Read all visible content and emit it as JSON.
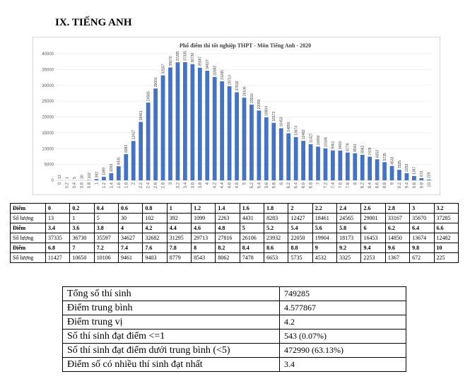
{
  "section_title": "IX. TIẾNG ANH",
  "chart_data": {
    "type": "bar",
    "title": "Phổ điểm thi tốt nghiệp THPT - Môn Tiếng Anh - 2020",
    "categories": [
      "0",
      "0.2",
      "0.4",
      "0.6",
      "0.8",
      "1",
      "1.2",
      "1.4",
      "1.6",
      "1.8",
      "2",
      "2.2",
      "2.4",
      "2.6",
      "2.8",
      "3",
      "3.2",
      "3.4",
      "3.6",
      "3.8",
      "4",
      "4.2",
      "4.4",
      "4.6",
      "4.8",
      "5",
      "5.2",
      "5.4",
      "5.6",
      "5.8",
      "6",
      "6.2",
      "6.4",
      "6.6",
      "6.8",
      "7",
      "7.2",
      "7.4",
      "7.6",
      "7.8",
      "8",
      "8.2",
      "8.4",
      "8.6",
      "8.8",
      "9",
      "9.2",
      "9.4",
      "9.6",
      "9.8",
      "10"
    ],
    "values": [
      13,
      1,
      5,
      30,
      102,
      392,
      1099,
      2263,
      4431,
      8283,
      12427,
      18461,
      24565,
      29001,
      33167,
      35670,
      37285,
      37335,
      36730,
      35597,
      34627,
      32682,
      31295,
      29713,
      27816,
      26106,
      23932,
      22050,
      19904,
      18173,
      16453,
      14850,
      13674,
      12482,
      11427,
      10650,
      10106,
      9461,
      9403,
      8779,
      8543,
      8062,
      7478,
      6653,
      5735,
      4532,
      3325,
      2253,
      1367,
      672,
      225
    ],
    "yticks": [
      "0",
      "5000",
      "10000",
      "15000",
      "20000",
      "25000",
      "30000",
      "35000",
      "40000"
    ],
    "ylim": [
      0,
      40000
    ],
    "bar_color": "#4472c4"
  },
  "dist_table": {
    "head_label": "Điểm",
    "count_label": "Số lượng",
    "rows": [
      {
        "scores": [
          "0",
          "0.2",
          "0.4",
          "0.6",
          "0.8",
          "1",
          "1.2",
          "1.4",
          "1.6",
          "1.8",
          "2",
          "2.2",
          "2.4",
          "2.6",
          "2.8",
          "3",
          "3.2"
        ],
        "counts": [
          "13",
          "1",
          "5",
          "30",
          "102",
          "392",
          "1099",
          "2263",
          "4431",
          "8283",
          "12427",
          "18461",
          "24565",
          "29001",
          "33167",
          "35670",
          "37285"
        ]
      },
      {
        "scores": [
          "3.4",
          "3.6",
          "3.8",
          "4",
          "4.2",
          "4.4",
          "4.6",
          "4.8",
          "5",
          "5.2",
          "5.4",
          "5.6",
          "5.8",
          "6",
          "6.2",
          "6.4",
          "6.6"
        ],
        "counts": [
          "37335",
          "36730",
          "35597",
          "34627",
          "32682",
          "31295",
          "29713",
          "27816",
          "26106",
          "23932",
          "22050",
          "19904",
          "18173",
          "16453",
          "14850",
          "13674",
          "12482"
        ]
      },
      {
        "scores": [
          "6.8",
          "7",
          "7.2",
          "7.4",
          "7.6",
          "7.8",
          "8",
          "8.2",
          "8.4",
          "8.6",
          "8.8",
          "9",
          "9.2",
          "9.4",
          "9.6",
          "9.8",
          "10"
        ],
        "counts": [
          "11427",
          "10650",
          "10106",
          "9461",
          "9403",
          "8779",
          "8543",
          "8062",
          "7478",
          "6653",
          "5735",
          "4532",
          "3325",
          "2253",
          "1367",
          "672",
          "225"
        ]
      }
    ]
  },
  "stats": [
    {
      "label": "Tổng số thí sinh",
      "value": "749285"
    },
    {
      "label": "Điểm trung bình",
      "value": "4.577867"
    },
    {
      "label": "Điểm trung vị",
      "value": "4.2"
    },
    {
      "label": "Số thí sinh đạt điểm <=1",
      "value": "543 (0.07%)"
    },
    {
      "label": "Số thí sinh đạt điểm dưới trung bình (<5)",
      "value": "472990 (63.13%)"
    },
    {
      "label": "Điểm số có nhiều thí sinh đạt nhất",
      "value": "3.4"
    }
  ]
}
